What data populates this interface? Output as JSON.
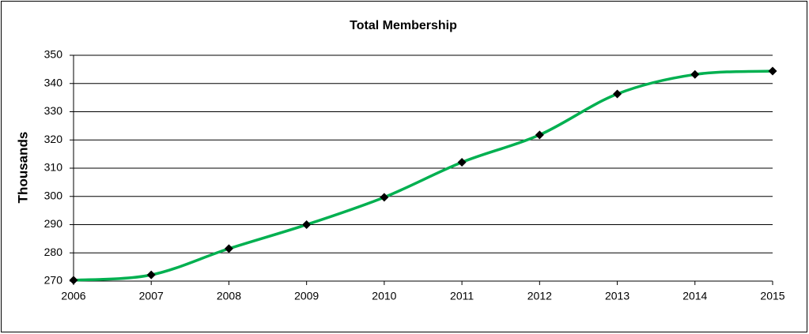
{
  "chart_data": {
    "type": "line",
    "title": "Total Membership",
    "y_label": "Thousands",
    "x": [
      2006,
      2007,
      2008,
      2009,
      2010,
      2011,
      2012,
      2013,
      2014,
      2015
    ],
    "series": [
      {
        "color": "#00b050",
        "values": [
          270.3,
          272.2,
          281.5,
          290,
          299.7,
          312.1,
          321.8,
          336.3,
          343.2,
          344.4
        ]
      }
    ],
    "xlim": [
      2006,
      2015
    ],
    "xticks": [
      2006,
      2007,
      2008,
      2009,
      2010,
      2011,
      2012,
      2013,
      2014,
      2015
    ],
    "ylim": [
      270,
      350
    ],
    "yticks": [
      270,
      280,
      290,
      300,
      310,
      320,
      330,
      340,
      350
    ],
    "grid": true,
    "smooth": true,
    "marker_color": "#000000"
  }
}
